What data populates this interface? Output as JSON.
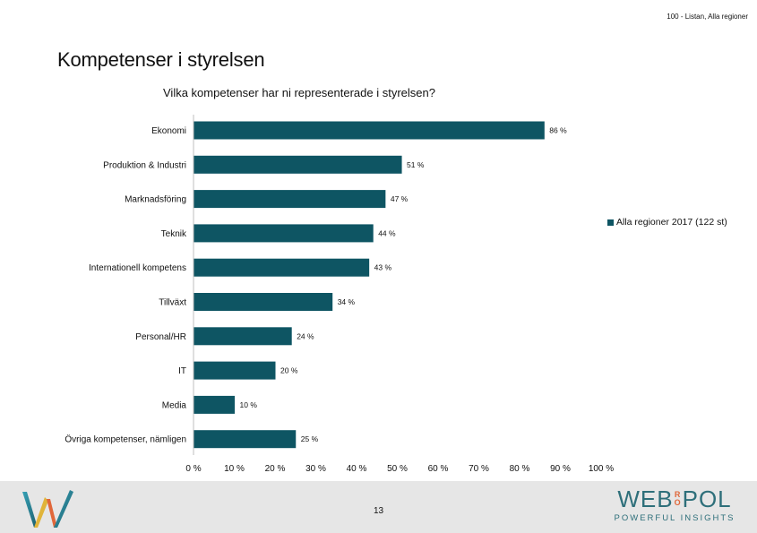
{
  "header": {
    "note": "100 - Listan, Alla regioner"
  },
  "slide": {
    "title": "Kompetenser i styrelsen"
  },
  "chart_data": {
    "type": "bar",
    "orientation": "horizontal",
    "title": "Vilka kompetenser har ni representerade i styrelsen?",
    "categories": [
      "Ekonomi",
      "Produktion & Industri",
      "Marknadsföring",
      "Teknik",
      "Internationell kompetens",
      "Tillväxt",
      "Personal/HR",
      "IT",
      "Media",
      "Övriga kompetenser, nämligen"
    ],
    "series": [
      {
        "name": "Alla regioner 2017 (122 st)",
        "values": [
          86,
          51,
          47,
          44,
          43,
          34,
          24,
          20,
          10,
          25
        ],
        "labels": [
          "86 %",
          "51 %",
          "47 %",
          "44 %",
          "43 %",
          "34 %",
          "24 %",
          "20 %",
          "10 %",
          "25 %"
        ],
        "color": "#0e5563"
      }
    ],
    "xticks": [
      "0 %",
      "10 %",
      "20 %",
      "30 %",
      "40 %",
      "50 %",
      "60 %",
      "70 %",
      "80 %",
      "90 %",
      "100 %"
    ],
    "xlim": [
      0,
      100
    ],
    "legend_position": "right",
    "grid": false
  },
  "footer": {
    "page_number": "13",
    "brand_left": "WEB",
    "brand_ro": [
      "R",
      "O"
    ],
    "brand_right": "POL",
    "tagline": "POWERFUL INSIGHTS"
  }
}
